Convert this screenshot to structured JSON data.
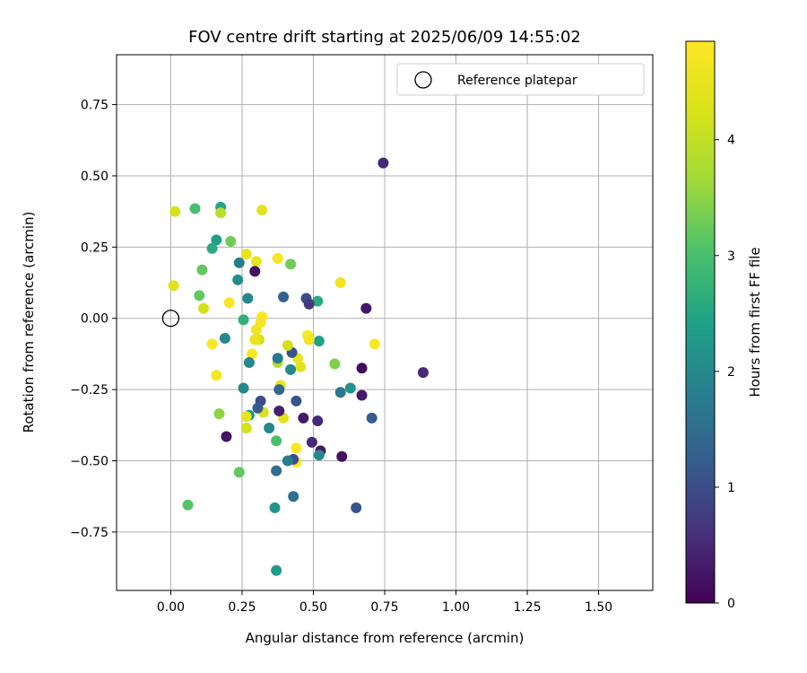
{
  "chart_data": {
    "type": "scatter",
    "title": "FOV centre drift starting at 2025/06/09 14:55:02",
    "xlabel": "Angular distance from reference (arcmin)",
    "ylabel": "Rotation from reference (arcmin)",
    "xlim": [
      -0.19,
      1.69
    ],
    "ylim": [
      -0.955,
      0.925
    ],
    "xticks": [
      0.0,
      0.25,
      0.5,
      0.75,
      1.0,
      1.25,
      1.5
    ],
    "xtick_labels": [
      "0.00",
      "0.25",
      "0.50",
      "0.75",
      "1.00",
      "1.25",
      "1.50"
    ],
    "yticks": [
      -0.75,
      -0.5,
      -0.25,
      0.0,
      0.25,
      0.5,
      0.75
    ],
    "ytick_labels": [
      "−0.75",
      "−0.50",
      "−0.25",
      "0.00",
      "0.25",
      "0.50",
      "0.75"
    ],
    "grid": true,
    "legend": {
      "placement": "top-right",
      "entries": [
        {
          "label": "Reference platepar",
          "marker": "open-circle"
        }
      ]
    },
    "reference_point": {
      "x": 0.0,
      "y": 0.0
    },
    "colorbar": {
      "label": "Hours from first FF file",
      "colormap": "viridis",
      "range": [
        0,
        4.85
      ],
      "ticks": [
        0,
        1,
        2,
        3,
        4
      ],
      "tick_labels": [
        "0",
        "1",
        "2",
        "3",
        "4"
      ]
    },
    "points": [
      {
        "x": 0.745,
        "y": 0.545,
        "c": 0.5
      },
      {
        "x": 0.885,
        "y": -0.19,
        "c": 0.5
      },
      {
        "x": 0.685,
        "y": 0.035,
        "c": 0.3
      },
      {
        "x": 0.67,
        "y": -0.175,
        "c": 0.1
      },
      {
        "x": 0.67,
        "y": -0.27,
        "c": 0.3
      },
      {
        "x": 0.705,
        "y": -0.35,
        "c": 1.2
      },
      {
        "x": 0.65,
        "y": -0.665,
        "c": 1.1
      },
      {
        "x": 0.6,
        "y": -0.485,
        "c": 0.2
      },
      {
        "x": 0.595,
        "y": -0.26,
        "c": 1.7
      },
      {
        "x": 0.63,
        "y": -0.245,
        "c": 2.2
      },
      {
        "x": 0.595,
        "y": 0.125,
        "c": 4.6
      },
      {
        "x": 0.715,
        "y": -0.09,
        "c": 4.8
      },
      {
        "x": 0.575,
        "y": -0.16,
        "c": 3.4
      },
      {
        "x": 0.525,
        "y": -0.465,
        "c": 0.3
      },
      {
        "x": 0.515,
        "y": -0.36,
        "c": 0.5
      },
      {
        "x": 0.52,
        "y": -0.48,
        "c": 2.0
      },
      {
        "x": 0.52,
        "y": -0.08,
        "c": 2.4
      },
      {
        "x": 0.515,
        "y": 0.06,
        "c": 2.6
      },
      {
        "x": 0.475,
        "y": 0.07,
        "c": 1.0
      },
      {
        "x": 0.485,
        "y": 0.05,
        "c": 0.7
      },
      {
        "x": 0.48,
        "y": -0.06,
        "c": 4.8
      },
      {
        "x": 0.485,
        "y": -0.075,
        "c": 4.7
      },
      {
        "x": 0.465,
        "y": -0.35,
        "c": 0.3
      },
      {
        "x": 0.495,
        "y": -0.435,
        "c": 0.5
      },
      {
        "x": 0.455,
        "y": -0.17,
        "c": 4.4
      },
      {
        "x": 0.445,
        "y": -0.14,
        "c": 4.5
      },
      {
        "x": 0.44,
        "y": -0.29,
        "c": 1.1
      },
      {
        "x": 0.44,
        "y": -0.455,
        "c": 4.8
      },
      {
        "x": 0.44,
        "y": -0.505,
        "c": 4.8
      },
      {
        "x": 0.43,
        "y": -0.495,
        "c": 1.0
      },
      {
        "x": 0.43,
        "y": -0.625,
        "c": 1.6
      },
      {
        "x": 0.425,
        "y": -0.12,
        "c": 1.1
      },
      {
        "x": 0.42,
        "y": -0.18,
        "c": 2.0
      },
      {
        "x": 0.42,
        "y": 0.19,
        "c": 3.3
      },
      {
        "x": 0.41,
        "y": -0.5,
        "c": 1.8
      },
      {
        "x": 0.41,
        "y": -0.095,
        "c": 4.2
      },
      {
        "x": 0.395,
        "y": 0.075,
        "c": 1.3
      },
      {
        "x": 0.395,
        "y": -0.35,
        "c": 4.4
      },
      {
        "x": 0.385,
        "y": -0.235,
        "c": 4.6
      },
      {
        "x": 0.38,
        "y": -0.325,
        "c": 0.4
      },
      {
        "x": 0.375,
        "y": -0.155,
        "c": 3.8
      },
      {
        "x": 0.375,
        "y": -0.14,
        "c": 1.7
      },
      {
        "x": 0.375,
        "y": 0.21,
        "c": 4.7
      },
      {
        "x": 0.38,
        "y": -0.25,
        "c": 1.4
      },
      {
        "x": 0.37,
        "y": -0.535,
        "c": 1.5
      },
      {
        "x": 0.37,
        "y": -0.43,
        "c": 3.0
      },
      {
        "x": 0.37,
        "y": -0.885,
        "c": 2.3
      },
      {
        "x": 0.365,
        "y": -0.665,
        "c": 2.2
      },
      {
        "x": 0.345,
        "y": -0.385,
        "c": 2.0
      },
      {
        "x": 0.325,
        "y": -0.33,
        "c": 4.3
      },
      {
        "x": 0.32,
        "y": 0.005,
        "c": 4.8
      },
      {
        "x": 0.315,
        "y": -0.015,
        "c": 4.7
      },
      {
        "x": 0.32,
        "y": 0.38,
        "c": 4.4
      },
      {
        "x": 0.315,
        "y": -0.29,
        "c": 1.0
      },
      {
        "x": 0.305,
        "y": -0.315,
        "c": 1.2
      },
      {
        "x": 0.31,
        "y": -0.075,
        "c": 4.3
      },
      {
        "x": 0.3,
        "y": -0.04,
        "c": 4.6
      },
      {
        "x": 0.295,
        "y": -0.075,
        "c": 4.5
      },
      {
        "x": 0.3,
        "y": 0.2,
        "c": 4.5
      },
      {
        "x": 0.295,
        "y": 0.165,
        "c": 0.2
      },
      {
        "x": 0.285,
        "y": -0.125,
        "c": 4.8
      },
      {
        "x": 0.275,
        "y": -0.155,
        "c": 2.0
      },
      {
        "x": 0.275,
        "y": -0.34,
        "c": 2.2
      },
      {
        "x": 0.27,
        "y": 0.07,
        "c": 2.0
      },
      {
        "x": 0.265,
        "y": -0.345,
        "c": 4.5
      },
      {
        "x": 0.265,
        "y": -0.385,
        "c": 4.2
      },
      {
        "x": 0.265,
        "y": 0.225,
        "c": 4.5
      },
      {
        "x": 0.255,
        "y": -0.005,
        "c": 2.7
      },
      {
        "x": 0.255,
        "y": -0.245,
        "c": 2.0
      },
      {
        "x": 0.24,
        "y": 0.195,
        "c": 1.8
      },
      {
        "x": 0.235,
        "y": 0.135,
        "c": 2.1
      },
      {
        "x": 0.24,
        "y": -0.54,
        "c": 3.2
      },
      {
        "x": 0.21,
        "y": 0.27,
        "c": 3.3
      },
      {
        "x": 0.205,
        "y": 0.055,
        "c": 4.8
      },
      {
        "x": 0.195,
        "y": -0.415,
        "c": 0.2
      },
      {
        "x": 0.19,
        "y": -0.07,
        "c": 2.0
      },
      {
        "x": 0.175,
        "y": 0.39,
        "c": 2.5
      },
      {
        "x": 0.175,
        "y": 0.37,
        "c": 3.9
      },
      {
        "x": 0.17,
        "y": -0.335,
        "c": 3.5
      },
      {
        "x": 0.16,
        "y": -0.2,
        "c": 4.7
      },
      {
        "x": 0.16,
        "y": 0.275,
        "c": 2.4
      },
      {
        "x": 0.145,
        "y": 0.245,
        "c": 2.6
      },
      {
        "x": 0.145,
        "y": -0.09,
        "c": 4.8
      },
      {
        "x": 0.115,
        "y": 0.035,
        "c": 4.2
      },
      {
        "x": 0.11,
        "y": 0.17,
        "c": 3.2
      },
      {
        "x": 0.1,
        "y": 0.08,
        "c": 3.2
      },
      {
        "x": 0.085,
        "y": 0.385,
        "c": 3.0
      },
      {
        "x": 0.06,
        "y": -0.655,
        "c": 3.1
      },
      {
        "x": 0.015,
        "y": 0.375,
        "c": 4.2
      },
      {
        "x": 0.01,
        "y": 0.115,
        "c": 4.4
      }
    ]
  }
}
